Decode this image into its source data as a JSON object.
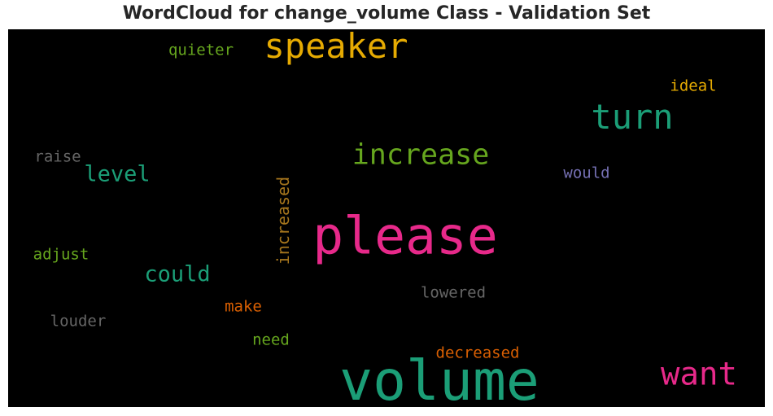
{
  "chart_data": {
    "type": "wordcloud",
    "title": "WordCloud for change_volume Class - Validation Set",
    "background": "#000000",
    "words": [
      {
        "text": "volume",
        "weight": 1.0,
        "color": "#1b9e77",
        "vertical": false
      },
      {
        "text": "please",
        "weight": 0.93,
        "color": "#e7298a",
        "vertical": false
      },
      {
        "text": "speaker",
        "weight": 0.62,
        "color": "#e6ab02",
        "vertical": false
      },
      {
        "text": "turn",
        "weight": 0.62,
        "color": "#1b9e77",
        "vertical": false
      },
      {
        "text": "want",
        "weight": 0.57,
        "color": "#e7298a",
        "vertical": false
      },
      {
        "text": "increase",
        "weight": 0.52,
        "color": "#66a61e",
        "vertical": false
      },
      {
        "text": "could",
        "weight": 0.4,
        "color": "#1b9e77",
        "vertical": false
      },
      {
        "text": "level",
        "weight": 0.4,
        "color": "#1b9e77",
        "vertical": false
      },
      {
        "text": "increased",
        "weight": 0.3,
        "color": "#a6761d",
        "vertical": true
      },
      {
        "text": "decreased",
        "weight": 0.29,
        "color": "#d95f02",
        "vertical": false
      },
      {
        "text": "lowered",
        "weight": 0.29,
        "color": "#666666",
        "vertical": false
      },
      {
        "text": "quieter",
        "weight": 0.28,
        "color": "#66a61e",
        "vertical": false
      },
      {
        "text": "ideal",
        "weight": 0.28,
        "color": "#e6ab02",
        "vertical": false
      },
      {
        "text": "would",
        "weight": 0.28,
        "color": "#7570b3",
        "vertical": false
      },
      {
        "text": "raise",
        "weight": 0.28,
        "color": "#666666",
        "vertical": false
      },
      {
        "text": "adjust",
        "weight": 0.28,
        "color": "#66a61e",
        "vertical": false
      },
      {
        "text": "make",
        "weight": 0.28,
        "color": "#d95f02",
        "vertical": false
      },
      {
        "text": "louder",
        "weight": 0.28,
        "color": "#666666",
        "vertical": false
      },
      {
        "text": "need",
        "weight": 0.28,
        "color": "#66a61e",
        "vertical": false
      }
    ]
  }
}
